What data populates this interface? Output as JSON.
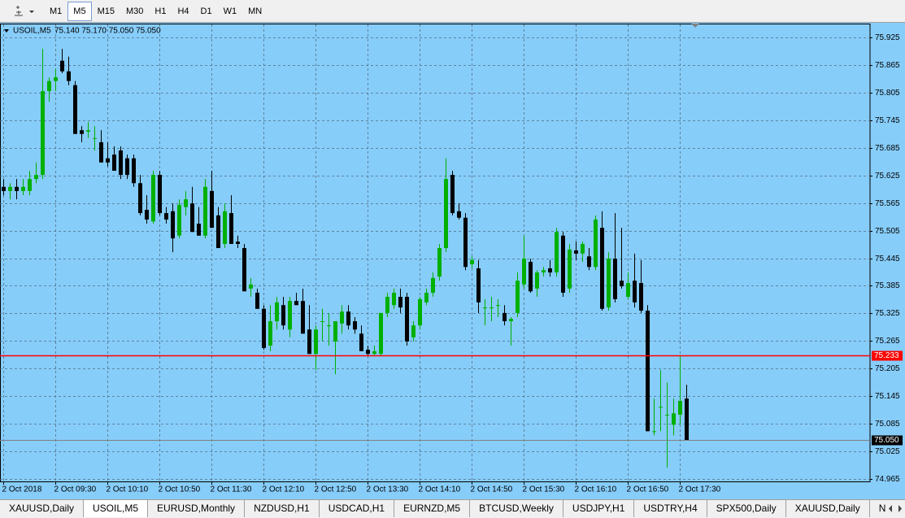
{
  "toolbar": {
    "timeframes": [
      "M1",
      "M5",
      "M15",
      "M30",
      "H1",
      "H4",
      "D1",
      "W1",
      "MN"
    ],
    "active": 1
  },
  "header": {
    "symbol": "USOIL,M5",
    "ohlc": "75.140 75.170 75.050 75.050"
  },
  "chart_data": {
    "type": "candlestick",
    "categories": [
      "2 Oct 2018",
      null,
      null,
      null,
      null,
      null,
      null,
      null,
      "2 Oct 09:30",
      null,
      null,
      null,
      null,
      null,
      null,
      null,
      "2 Oct 10:10",
      null,
      null,
      null,
      null,
      null,
      null,
      null,
      "2 Oct 10:50",
      null,
      null,
      null,
      null,
      null,
      null,
      null,
      "2 Oct 11:30",
      null,
      null,
      null,
      null,
      null,
      null,
      null,
      "2 Oct 12:10",
      null,
      null,
      null,
      null,
      null,
      null,
      null,
      "2 Oct 12:50",
      null,
      null,
      null,
      null,
      null,
      null,
      null,
      "2 Oct 13:30",
      null,
      null,
      null,
      null,
      null,
      null,
      null,
      "2 Oct 14:10",
      null,
      null,
      null,
      null,
      null,
      null,
      null,
      "2 Oct 14:50",
      null,
      null,
      null,
      null,
      null,
      null,
      null,
      "2 Oct 15:30",
      null,
      null,
      null,
      null,
      null,
      null,
      null,
      "2 Oct 16:10",
      null,
      null,
      null,
      null,
      null,
      null,
      null,
      "2 Oct 16:50",
      null,
      null,
      null,
      null,
      null,
      null,
      null,
      "2 Oct 17:30",
      null
    ],
    "open": [
      75.6,
      75.591,
      75.6,
      75.591,
      75.591,
      75.617,
      75.626,
      75.808,
      75.83,
      75.874,
      75.851,
      75.821,
      75.723,
      75.72,
      75.706,
      75.697,
      75.662,
      75.67,
      75.679,
      75.662,
      75.662,
      75.608,
      75.55,
      75.525,
      75.626,
      75.543,
      75.547,
      75.494,
      75.556,
      75.564,
      75.52,
      75.494,
      75.591,
      75.538,
      75.476,
      75.543,
      75.481,
      75.467,
      75.379,
      75.37,
      75.335,
      75.255,
      75.308,
      75.343,
      75.29,
      75.352,
      75.352,
      75.29,
      75.237,
      75.308,
      75.299,
      75.264,
      75.303,
      75.329,
      75.308,
      75.281,
      75.246,
      75.237,
      75.237,
      75.326,
      75.343,
      75.361,
      75.361,
      75.273,
      75.299,
      75.349,
      75.37,
      75.405,
      75.467,
      75.626,
      75.547,
      75.533,
      75.432,
      75.423,
      75.338,
      75.338,
      75.343,
      75.326,
      75.308,
      75.326,
      75.388,
      75.437,
      75.379,
      75.414,
      75.423,
      75.414,
      75.494,
      75.379,
      75.462,
      75.455,
      75.449,
      75.426,
      75.511,
      75.338,
      75.444,
      75.396,
      75.361,
      75.396,
      75.391,
      75.331,
      75.069,
      75.122,
      75.105,
      75.083,
      75.105,
      75.14
    ],
    "high": [
      75.617,
      75.608,
      75.617,
      75.617,
      75.635,
      75.653,
      75.9,
      75.838,
      75.856,
      75.9,
      75.883,
      75.83,
      75.732,
      75.741,
      75.732,
      75.723,
      75.697,
      75.688,
      75.688,
      75.67,
      75.67,
      75.626,
      75.582,
      75.635,
      75.635,
      75.556,
      75.564,
      75.573,
      75.591,
      75.6,
      75.556,
      75.617,
      75.635,
      75.556,
      75.564,
      75.582,
      75.494,
      75.476,
      75.402,
      75.379,
      75.343,
      75.343,
      75.361,
      75.361,
      75.361,
      75.37,
      75.379,
      75.343,
      75.299,
      75.335,
      75.326,
      75.308,
      75.343,
      75.343,
      75.317,
      75.299,
      75.255,
      75.255,
      75.326,
      75.37,
      75.379,
      75.379,
      75.37,
      75.308,
      75.361,
      75.379,
      75.414,
      75.476,
      75.662,
      75.635,
      75.564,
      75.543,
      75.449,
      75.441,
      75.356,
      75.361,
      75.356,
      75.343,
      75.317,
      75.414,
      75.494,
      75.444,
      75.419,
      75.426,
      75.441,
      75.511,
      75.502,
      75.476,
      75.481,
      75.481,
      75.467,
      75.538,
      75.547,
      75.458,
      75.543,
      75.511,
      75.414,
      75.455,
      75.441,
      75.343,
      75.14,
      75.202,
      75.175,
      75.14,
      75.234,
      75.17
    ],
    "low": [
      75.582,
      75.573,
      75.573,
      75.582,
      75.582,
      75.608,
      75.617,
      75.785,
      75.808,
      75.847,
      75.821,
      75.715,
      75.697,
      75.706,
      75.679,
      75.653,
      75.644,
      75.635,
      75.617,
      75.617,
      75.6,
      75.538,
      75.52,
      75.52,
      75.538,
      75.52,
      75.458,
      75.488,
      75.538,
      75.502,
      75.494,
      75.488,
      75.511,
      75.467,
      75.467,
      75.476,
      75.467,
      75.373,
      75.361,
      75.335,
      75.246,
      75.243,
      75.29,
      75.29,
      75.273,
      75.343,
      75.281,
      75.237,
      75.202,
      75.264,
      75.255,
      75.193,
      75.281,
      75.29,
      75.281,
      75.243,
      75.234,
      75.234,
      75.234,
      75.317,
      75.335,
      75.326,
      75.255,
      75.264,
      75.29,
      75.343,
      75.361,
      75.396,
      75.458,
      75.538,
      75.529,
      75.419,
      75.423,
      75.326,
      75.299,
      75.308,
      75.317,
      75.299,
      75.255,
      75.317,
      75.379,
      75.37,
      75.361,
      75.405,
      75.405,
      75.405,
      75.361,
      75.37,
      75.441,
      75.437,
      75.419,
      75.419,
      75.331,
      75.331,
      75.349,
      75.379,
      75.356,
      75.338,
      75.326,
      75.069,
      75.06,
      75.069,
      74.99,
      75.06,
      75.083,
      75.05
    ],
    "close": [
      75.591,
      75.6,
      75.591,
      75.6,
      75.617,
      75.626,
      75.808,
      75.83,
      75.838,
      75.851,
      75.83,
      75.715,
      75.715,
      75.723,
      75.706,
      75.653,
      75.653,
      75.635,
      75.626,
      75.626,
      75.608,
      75.543,
      75.529,
      75.626,
      75.543,
      75.529,
      75.488,
      75.561,
      75.573,
      75.502,
      75.494,
      75.6,
      75.511,
      75.467,
      75.547,
      75.476,
      75.476,
      75.373,
      75.388,
      75.335,
      75.25,
      75.308,
      75.349,
      75.299,
      75.352,
      75.343,
      75.281,
      75.237,
      75.29,
      75.308,
      75.299,
      75.308,
      75.329,
      75.299,
      75.29,
      75.243,
      75.237,
      75.243,
      75.326,
      75.361,
      75.37,
      75.338,
      75.264,
      75.299,
      75.356,
      75.37,
      75.402,
      75.467,
      75.617,
      75.543,
      75.533,
      75.426,
      75.441,
      75.349,
      75.338,
      75.338,
      75.343,
      75.308,
      75.313,
      75.396,
      75.444,
      75.373,
      75.414,
      75.419,
      75.414,
      75.502,
      75.37,
      75.464,
      75.455,
      75.476,
      75.426,
      75.529,
      75.335,
      75.444,
      75.356,
      75.384,
      75.391,
      75.349,
      75.331,
      75.069,
      75.069,
      75.122,
      75.105,
      75.108,
      75.135,
      75.05
    ],
    "bull_color": "#00b000",
    "bear_color": "#000000",
    "background": "#87cdfa",
    "ylim": [
      74.96,
      75.953
    ],
    "yticks": [
      75.925,
      75.865,
      75.805,
      75.745,
      75.685,
      75.625,
      75.565,
      75.505,
      75.445,
      75.385,
      75.325,
      75.265,
      75.205,
      75.145,
      75.085,
      75.025,
      74.965
    ],
    "grid": true,
    "hline": {
      "value": 75.233,
      "label": "75.233",
      "color": "#ff0000"
    },
    "bid": {
      "value": 75.05,
      "label": "75.050",
      "color": "#808080"
    }
  },
  "tabs": {
    "items": [
      "XAUUSD,Daily",
      "USOIL,M5",
      "EURUSD,Monthly",
      "NZDUSD,H1",
      "USDCAD,H1",
      "EURNZD,M5",
      "BTCUSD,Weekly",
      "USDJPY,H1",
      "USDTRY,H4",
      "SPX500,Daily",
      "XAUUSD,Daily",
      "NZDUSD,M"
    ],
    "active": 1
  }
}
